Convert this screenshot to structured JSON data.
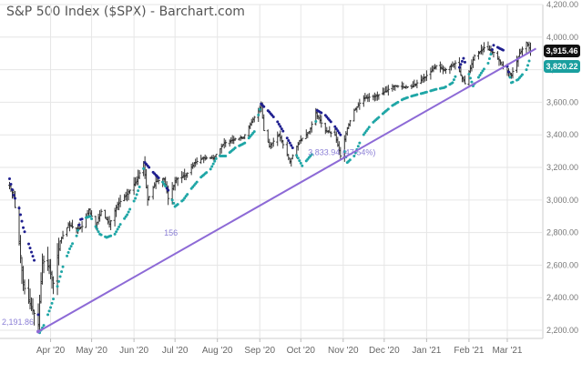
{
  "chart_data": {
    "type": "line",
    "title": "S&P 500 Index ($SPX) - Barchart.com",
    "x_ticks": [
      "Apr '20",
      "May '20",
      "Jun '20",
      "Jul '20",
      "Aug '20",
      "Sep '20",
      "Oct '20",
      "Nov '20",
      "Dec '20",
      "Jan '21",
      "Feb '21",
      "Mar '21"
    ],
    "y_ticks": [
      "2,200.00",
      "2,400.00",
      "2,600.00",
      "2,800.00",
      "3,000.00",
      "3,200.00",
      "3,400.00",
      "3,600.00",
      "3,800.00",
      "4,000.00",
      "4,200.00"
    ],
    "ylim": [
      2150,
      4200
    ],
    "series": [
      {
        "kind": "ohlc",
        "close_points": [
          [
            "2020-03-02",
            3090
          ],
          [
            "2020-03-05",
            3023
          ],
          [
            "2020-03-09",
            2746
          ],
          [
            "2020-03-12",
            2480
          ],
          [
            "2020-03-16",
            2386
          ],
          [
            "2020-03-20",
            2304
          ],
          [
            "2020-03-23",
            2237
          ],
          [
            "2020-03-26",
            2630
          ],
          [
            "2020-03-31",
            2585
          ],
          [
            "2020-04-03",
            2489
          ],
          [
            "2020-04-08",
            2750
          ],
          [
            "2020-04-14",
            2846
          ],
          [
            "2020-04-20",
            2823
          ],
          [
            "2020-04-24",
            2837
          ],
          [
            "2020-04-29",
            2939
          ],
          [
            "2020-05-04",
            2842
          ],
          [
            "2020-05-08",
            2930
          ],
          [
            "2020-05-14",
            2852
          ],
          [
            "2020-05-20",
            2972
          ],
          [
            "2020-05-27",
            3036
          ],
          [
            "2020-06-03",
            3122
          ],
          [
            "2020-06-08",
            3232
          ],
          [
            "2020-06-11",
            3002
          ],
          [
            "2020-06-17",
            3113
          ],
          [
            "2020-06-23",
            3131
          ],
          [
            "2020-06-26",
            3009
          ],
          [
            "2020-07-02",
            3130
          ],
          [
            "2020-07-09",
            3152
          ],
          [
            "2020-07-15",
            3226
          ],
          [
            "2020-07-21",
            3257
          ],
          [
            "2020-07-29",
            3258
          ],
          [
            "2020-08-06",
            3349
          ],
          [
            "2020-08-13",
            3373
          ],
          [
            "2020-08-20",
            3385
          ],
          [
            "2020-08-28",
            3508
          ],
          [
            "2020-09-02",
            3580
          ],
          [
            "2020-09-04",
            3426
          ],
          [
            "2020-09-08",
            3331
          ],
          [
            "2020-09-15",
            3401
          ],
          [
            "2020-09-23",
            3237
          ],
          [
            "2020-09-30",
            3363
          ],
          [
            "2020-10-07",
            3419
          ],
          [
            "2020-10-12",
            3534
          ],
          [
            "2020-10-19",
            3426
          ],
          [
            "2020-10-26",
            3400
          ],
          [
            "2020-10-30",
            3270
          ],
          [
            "2020-11-04",
            3443
          ],
          [
            "2020-11-09",
            3550
          ],
          [
            "2020-11-16",
            3627
          ],
          [
            "2020-11-24",
            3635
          ],
          [
            "2020-12-01",
            3662
          ],
          [
            "2020-12-08",
            3702
          ],
          [
            "2020-12-15",
            3694
          ],
          [
            "2020-12-21",
            3694
          ],
          [
            "2020-12-31",
            3756
          ],
          [
            "2021-01-08",
            3824
          ],
          [
            "2021-01-14",
            3795
          ],
          [
            "2021-01-22",
            3841
          ],
          [
            "2021-01-29",
            3714
          ],
          [
            "2021-02-05",
            3886
          ],
          [
            "2021-02-12",
            3934
          ],
          [
            "2021-02-19",
            3906
          ],
          [
            "2021-02-25",
            3829
          ],
          [
            "2021-03-04",
            3768
          ],
          [
            "2021-03-10",
            3899
          ],
          [
            "2021-03-15",
            3968
          ],
          [
            "2021-03-18",
            3915
          ]
        ]
      },
      {
        "kind": "parabolic-sar",
        "dots": [
          [
            "2020-03-02",
            3130
          ],
          [
            "2020-03-05",
            3030
          ],
          [
            "2020-03-09",
            2950
          ],
          [
            "2020-03-12",
            2830
          ],
          [
            "2020-03-16",
            2730
          ],
          [
            "2020-03-20",
            2630
          ],
          [
            "2020-03-24",
            2185
          ],
          [
            "2020-03-27",
            2230
          ],
          [
            "2020-04-01",
            2340
          ],
          [
            "2020-04-06",
            2470
          ],
          [
            "2020-04-10",
            2590
          ],
          [
            "2020-04-15",
            2700
          ],
          [
            "2020-04-20",
            2780
          ],
          [
            "2020-04-23",
            2880
          ],
          [
            "2020-04-30",
            2900
          ],
          [
            "2020-05-07",
            2790
          ],
          [
            "2020-05-12",
            2770
          ],
          [
            "2020-05-18",
            2790
          ],
          [
            "2020-05-22",
            2850
          ],
          [
            "2020-05-27",
            2910
          ],
          [
            "2020-06-02",
            3010
          ],
          [
            "2020-06-05",
            3080
          ],
          [
            "2020-06-09",
            3230
          ],
          [
            "2020-06-15",
            3170
          ],
          [
            "2020-06-22",
            3110
          ],
          [
            "2020-06-26",
            3060
          ],
          [
            "2020-07-01",
            2960
          ],
          [
            "2020-07-07",
            3000
          ],
          [
            "2020-07-13",
            3070
          ],
          [
            "2020-07-20",
            3140
          ],
          [
            "2020-07-27",
            3190
          ],
          [
            "2020-08-01",
            3270
          ],
          [
            "2020-08-07",
            3270
          ],
          [
            "2020-08-14",
            3320
          ],
          [
            "2020-08-21",
            3350
          ],
          [
            "2020-08-28",
            3420
          ],
          [
            "2020-09-02",
            3590
          ],
          [
            "2020-09-08",
            3540
          ],
          [
            "2020-09-14",
            3480
          ],
          [
            "2020-09-21",
            3380
          ],
          [
            "2020-09-25",
            3320
          ],
          [
            "2020-10-02",
            3210
          ],
          [
            "2020-10-09",
            3280
          ],
          [
            "2020-10-13",
            3550
          ],
          [
            "2020-10-19",
            3520
          ],
          [
            "2020-10-26",
            3450
          ],
          [
            "2020-10-30",
            3400
          ],
          [
            "2020-11-04",
            3230
          ],
          [
            "2020-11-09",
            3270
          ],
          [
            "2020-11-15",
            3390
          ],
          [
            "2020-11-22",
            3470
          ],
          [
            "2020-11-30",
            3530
          ],
          [
            "2020-12-07",
            3580
          ],
          [
            "2020-12-15",
            3620
          ],
          [
            "2020-12-22",
            3640
          ],
          [
            "2020-12-31",
            3660
          ],
          [
            "2021-01-08",
            3680
          ],
          [
            "2021-01-14",
            3690
          ],
          [
            "2021-01-20",
            3720
          ],
          [
            "2021-01-28",
            3870
          ],
          [
            "2021-02-04",
            3700
          ],
          [
            "2021-02-10",
            3780
          ],
          [
            "2021-02-15",
            3840
          ],
          [
            "2021-02-19",
            3950
          ],
          [
            "2021-02-26",
            3920
          ],
          [
            "2021-03-04",
            3720
          ],
          [
            "2021-03-09",
            3740
          ],
          [
            "2021-03-15",
            3800
          ],
          [
            "2021-03-18",
            3880
          ]
        ]
      },
      {
        "kind": "trendline",
        "points": [
          [
            "2020-03-23",
            2191.86
          ],
          [
            "2021-03-22",
            3930
          ]
        ]
      }
    ],
    "annotations": {
      "trend_start_label": "2,191.86",
      "bars_label": "156",
      "measure_label": "3,833.94 (47.54%)"
    },
    "last_price": "3,915.46",
    "sar_value": "3,820.22",
    "colors": {
      "bars": "#333333",
      "sar_above": "#1f1f8f",
      "sar_below": "#1fa6a6",
      "trendline": "#8d6ad6",
      "price_badge": "#111111",
      "sar_badge": "#1a9f9f",
      "grid": "#e6e6e6"
    },
    "grid": true
  }
}
